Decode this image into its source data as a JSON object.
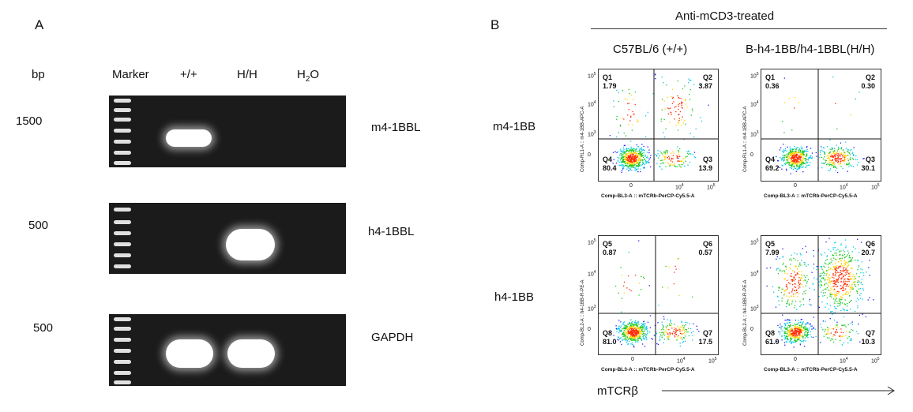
{
  "panelA": {
    "letter": "A",
    "bp_label": "bp",
    "lane_labels": [
      "Marker",
      "+/+",
      "H/H",
      "H2O"
    ],
    "rows": [
      {
        "size": "1500",
        "gene": "m4-1BBL"
      },
      {
        "size": "500",
        "gene": "h4-1BBL"
      },
      {
        "size": "500",
        "gene": "GAPDH"
      }
    ]
  },
  "panelB": {
    "letter": "B",
    "treatment": "Anti-mCD3-treated",
    "columns": [
      "C57BL/6 (+/+)",
      "B-h4-1BB/h4-1BBL(H/H)"
    ],
    "row_labels": [
      "m4-1BB",
      "h4-1BB"
    ],
    "x_axis_title": "mTCRβ",
    "plots": [
      {
        "quads": [
          "Q1",
          "Q2",
          "Q3",
          "Q4"
        ],
        "values": [
          "1.79",
          "3.87",
          "13.9",
          "80.4"
        ],
        "ylabel": "Comp-RL1-A :: m4-1BB-APC-A",
        "xlabel": "Comp-BL3-A :: mTCRb-PerCP-Cy5.5-A"
      },
      {
        "quads": [
          "Q1",
          "Q2",
          "Q3",
          "Q4"
        ],
        "values": [
          "0.36",
          "0.30",
          "30.1",
          "69.2"
        ],
        "ylabel": "Comp-RL1-A :: m4-1BB-APC-A",
        "xlabel": "Comp-BL3-A :: mTCRb-PerCP-Cy5.5-A"
      },
      {
        "quads": [
          "Q5",
          "Q6",
          "Q7",
          "Q8"
        ],
        "values": [
          "0.87",
          "0.57",
          "17.5",
          "81.0"
        ],
        "ylabel": "Comp-BL2-A :: h4-1BB-R-PE-A",
        "xlabel": "Comp-BL3-A :: mTCRb-PerCP-Cy5.5-A"
      },
      {
        "quads": [
          "Q5",
          "Q6",
          "Q7",
          "Q8"
        ],
        "values": [
          "7.99",
          "20.7",
          "10.3",
          "61.0"
        ],
        "ylabel": "Comp-BL2-A :: h4-1BB-R-PE-A",
        "xlabel": "Comp-BL3-A :: mTCRb-PerCP-Cy5.5-A"
      }
    ],
    "tick_labels": {
      "zero": "0",
      "e3": "10",
      "e4": "10",
      "e5": "10",
      "exp3": "3",
      "exp4": "4",
      "exp5": "5"
    }
  }
}
